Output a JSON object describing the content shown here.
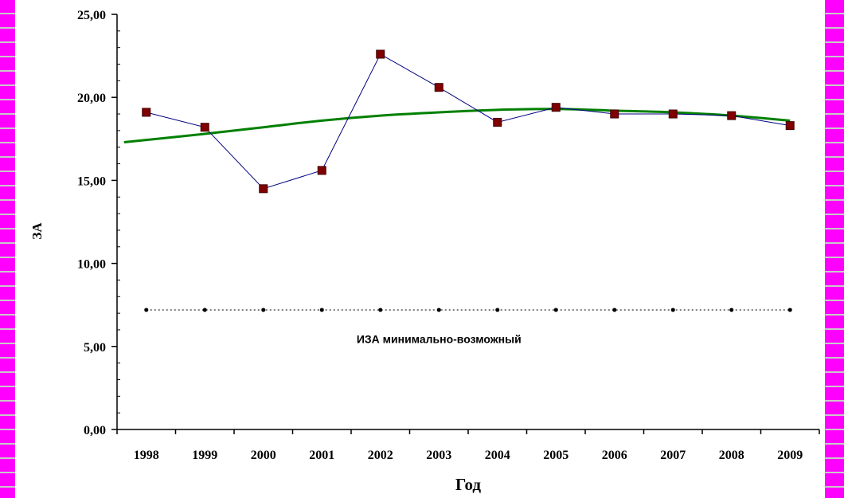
{
  "chart_data": {
    "type": "line",
    "title": "",
    "xlabel": "Год",
    "ylabel": "ЗА",
    "categories": [
      "1998",
      "1999",
      "2000",
      "2001",
      "2002",
      "2003",
      "2004",
      "2005",
      "2006",
      "2007",
      "2008",
      "2009"
    ],
    "y_ticks": [
      "0,00",
      "5,00",
      "10,00",
      "15,00",
      "20,00",
      "25,00"
    ],
    "ylim": [
      0,
      25
    ],
    "grid": false,
    "series": [
      {
        "values": [
          19.1,
          18.2,
          14.5,
          15.6,
          22.6,
          20.6,
          18.5,
          19.4,
          19.0,
          19.0,
          18.9,
          18.3
        ],
        "color": "#000080",
        "marker_color": "#800000"
      },
      {
        "values": [
          17.3,
          17.8,
          18.2,
          18.6,
          18.9,
          19.1,
          19.25,
          19.3,
          19.2,
          19.1,
          18.9,
          18.6
        ],
        "color": "#008000"
      },
      {
        "name": "ИЗА минимально-возможный",
        "values": [
          7.2,
          7.2,
          7.2,
          7.2,
          7.2,
          7.2,
          7.2,
          7.2,
          7.2,
          7.2,
          7.2,
          7.2
        ],
        "color": "#000000"
      }
    ],
    "annotation": {
      "text": "ИЗА минимально-возможный",
      "x": "2003",
      "y": 5.2
    }
  },
  "colors": {
    "border": "#ff00ff",
    "separator": "#c8c8c8"
  }
}
